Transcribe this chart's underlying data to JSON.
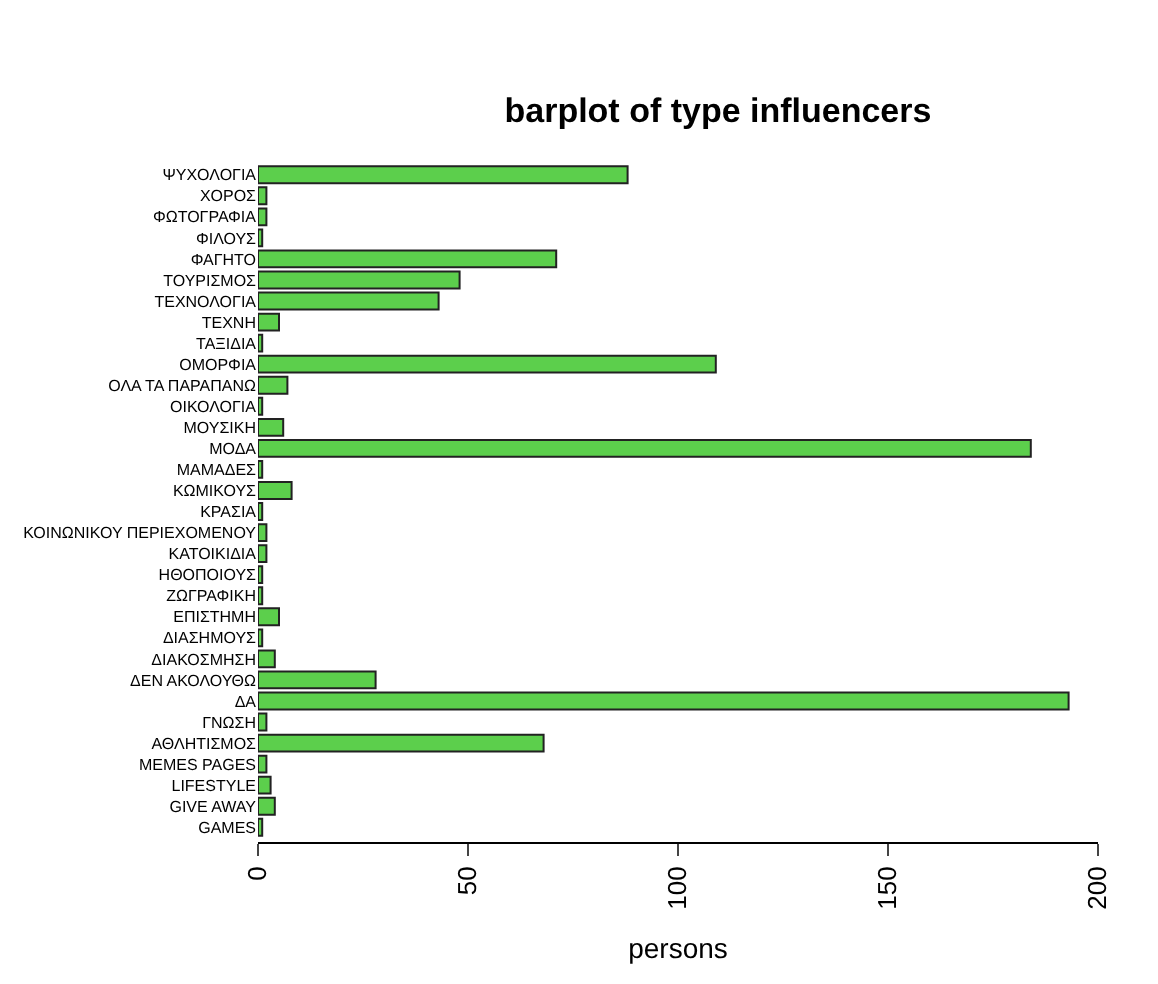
{
  "chart_data": {
    "type": "bar",
    "orientation": "horizontal",
    "title": "barplot of type influencers",
    "xlabel": "persons",
    "categories": [
      "ΨΥΧΟΛΟΓΙΑ",
      "ΧΟΡΟΣ",
      "ΦΩΤΟΓΡΑΦΙΑ",
      "ΦΙΛΟΥΣ",
      "ΦΑΓΗΤΟ",
      "ΤΟΥΡΙΣΜΟΣ",
      "ΤΕΧΝΟΛΟΓΙΑ",
      "ΤΕΧΝΗ",
      "ΤΑΞΙΔΙΑ",
      "ΟΜΟΡΦΙΑ",
      "ΟΛΑ ΤΑ ΠΑΡΑΠΑΝΩ",
      "ΟΙΚΟΛΟΓΙΑ",
      "ΜΟΥΣΙΚΗ",
      "ΜΟΔΑ",
      "ΜΑΜΑΔΕΣ",
      "ΚΩΜΙΚΟΥΣ",
      "ΚΡΑΣΙΑ",
      "ΚΟΙΝΩΝΙΚΟΥ ΠΕΡΙΕΧΟΜΕΝΟΥ",
      "ΚΑΤΟΙΚΙΔΙΑ",
      "ΗΘΟΠΟΙΟΥΣ",
      "ΖΩΓΡΑΦΙΚΗ",
      "ΕΠΙΣΤΗΜΗ",
      "ΔΙΑΣΗΜΟΥΣ",
      "ΔΙΑΚΟΣΜΗΣΗ",
      "ΔΕΝ ΑΚΟΛΟΥΘΩ",
      "ΔΑ",
      "ΓΝΩΣΗ",
      "ΑΘΛΗΤΙΣΜΟΣ",
      "MEMES PAGES",
      "LIFESTYLE",
      "GIVE AWAY",
      "GAMES"
    ],
    "values": [
      88,
      2,
      2,
      1,
      71,
      48,
      43,
      5,
      1,
      109,
      7,
      1,
      6,
      184,
      1,
      8,
      1,
      2,
      2,
      1,
      1,
      5,
      1,
      4,
      28,
      193,
      2,
      68,
      2,
      3,
      4,
      1
    ],
    "color": "#5ccf4c",
    "xlim": [
      0,
      200
    ],
    "xticks": [
      0,
      50,
      100,
      150,
      200
    ]
  }
}
